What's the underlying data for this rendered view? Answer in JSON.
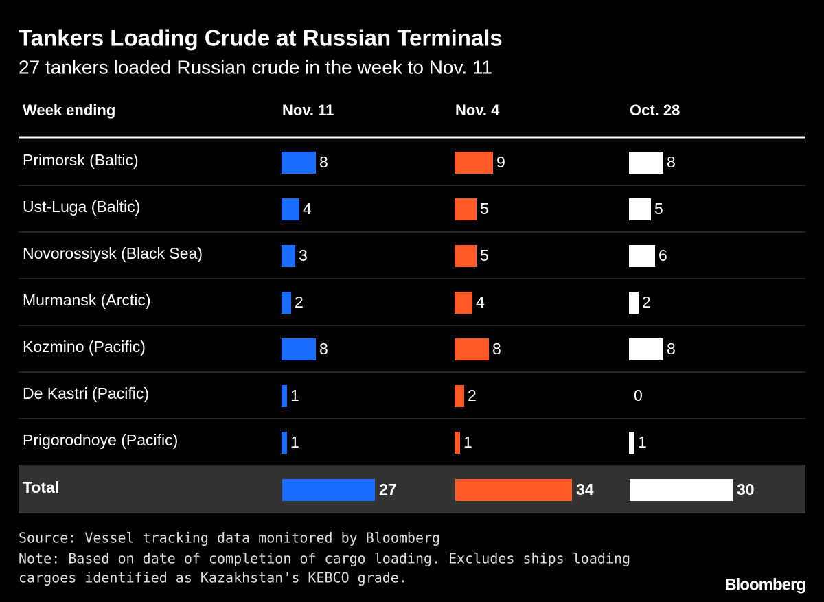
{
  "chart_data": {
    "type": "table-bar",
    "title": "Tankers Loading Crude at Russian Terminals",
    "subtitle": "27 tankers loaded Russian crude in the week to Nov. 11",
    "row_header": "Week ending",
    "series": [
      {
        "name": "Nov. 11",
        "color": "#1a6cff",
        "values": [
          8,
          4,
          3,
          2,
          8,
          1,
          1
        ],
        "total": 27
      },
      {
        "name": "Nov. 4",
        "color": "#ff5a28",
        "values": [
          9,
          5,
          5,
          4,
          8,
          2,
          1
        ],
        "total": 34
      },
      {
        "name": "Oct. 28",
        "color": "#ffffff",
        "values": [
          8,
          5,
          6,
          2,
          8,
          0,
          1
        ],
        "total": 30
      }
    ],
    "categories": [
      "Primorsk (Baltic)",
      "Ust-Luga (Baltic)",
      "Novorossiysk (Black Sea)",
      "Murmansk (Arctic)",
      "Kozmino (Pacific)",
      "De Kastri (Pacific)",
      "Prigorodnoye (Pacific)"
    ],
    "total_label": "Total",
    "source": "Source: Vessel tracking data monitored by Bloomberg",
    "note_lines": [
      "Note: Based on date of completion of cargo loading. Excludes ships loading",
      "cargoes identified as Kazakhstan's KEBCO grade."
    ],
    "brand": "Bloomberg"
  }
}
